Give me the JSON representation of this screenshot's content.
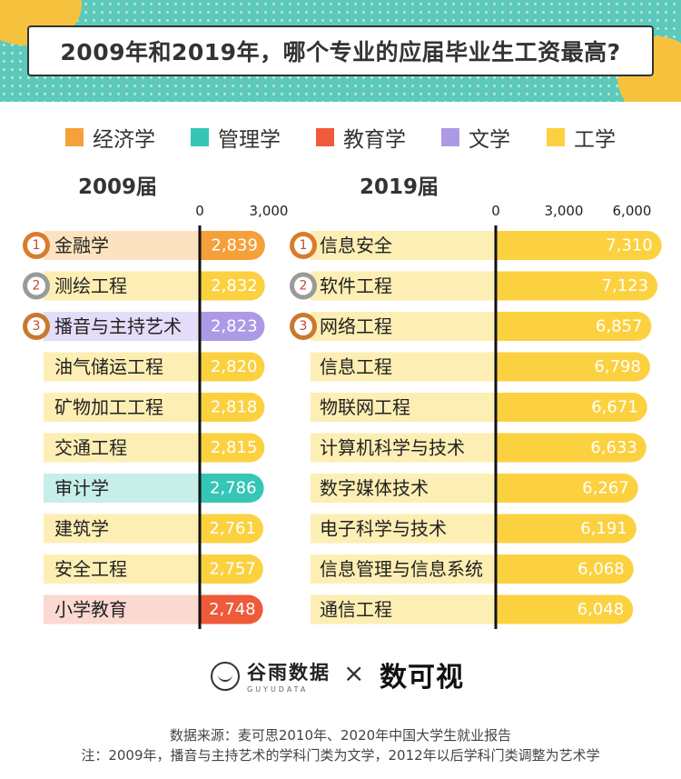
{
  "title": "2009年和2019年，哪个专业的应届毕业生工资最高?",
  "legend": [
    {
      "label": "经济学",
      "color": "#f5a03a"
    },
    {
      "label": "管理学",
      "color": "#35c6b6"
    },
    {
      "label": "教育学",
      "color": "#ee5a3a"
    },
    {
      "label": "文学",
      "color": "#ad9ae6"
    },
    {
      "label": "工学",
      "color": "#fbd140"
    }
  ],
  "chart_data": [
    {
      "type": "bar",
      "title": "2009届",
      "xlim": [
        0,
        3000
      ],
      "ticks": [
        {
          "value": 0,
          "label": "0"
        },
        {
          "value": 3000,
          "label": "3,000"
        }
      ],
      "categories": [
        "金融学",
        "测绘工程",
        "播音与主持艺术",
        "油气储运工程",
        "矿物加工工程",
        "交通工程",
        "审计学",
        "建筑学",
        "安全工程",
        "小学教育"
      ],
      "values": [
        2839,
        2832,
        2823,
        2820,
        2818,
        2815,
        2786,
        2761,
        2757,
        2748
      ],
      "value_labels": [
        "2,839",
        "2,832",
        "2,823",
        "2,820",
        "2,818",
        "2,815",
        "2,786",
        "2,761",
        "2,757",
        "2,748"
      ],
      "groups": [
        "经济学",
        "工学",
        "文学",
        "工学",
        "工学",
        "工学",
        "管理学",
        "工学",
        "工学",
        "教育学"
      ],
      "rank_badges": [
        "1",
        "2",
        "3"
      ]
    },
    {
      "type": "bar",
      "title": "2019届",
      "xlim": [
        0,
        6000
      ],
      "ticks": [
        {
          "value": 0,
          "label": "0"
        },
        {
          "value": 3000,
          "label": "3,000"
        },
        {
          "value": 6000,
          "label": "6,000"
        }
      ],
      "categories": [
        "信息安全",
        "软件工程",
        "网络工程",
        "信息工程",
        "物联网工程",
        "计算机科学与技术",
        "数字媒体技术",
        "电子科学与技术",
        "信息管理与信息系统",
        "通信工程"
      ],
      "values": [
        7310,
        7123,
        6857,
        6798,
        6671,
        6633,
        6267,
        6191,
        6068,
        6048
      ],
      "value_labels": [
        "7,310",
        "7,123",
        "6,857",
        "6,798",
        "6,671",
        "6,633",
        "6,267",
        "6,191",
        "6,068",
        "6,048"
      ],
      "groups": [
        "工学",
        "工学",
        "工学",
        "工学",
        "工学",
        "工学",
        "工学",
        "工学",
        "工学",
        "工学"
      ],
      "rank_badges": [
        "1",
        "2",
        "3"
      ]
    }
  ],
  "logos": {
    "guyu_name": "谷雨数据",
    "guyu_sub": "GUYUDATA",
    "times": "×",
    "shuxie": "数可视"
  },
  "footer": {
    "source": "数据来源：麦可思2010年、2020年中国大学生就业报告",
    "note": "注：2009年，播音与主持艺术的学科门类为文学，2012年以后学科门类调整为艺术学"
  }
}
